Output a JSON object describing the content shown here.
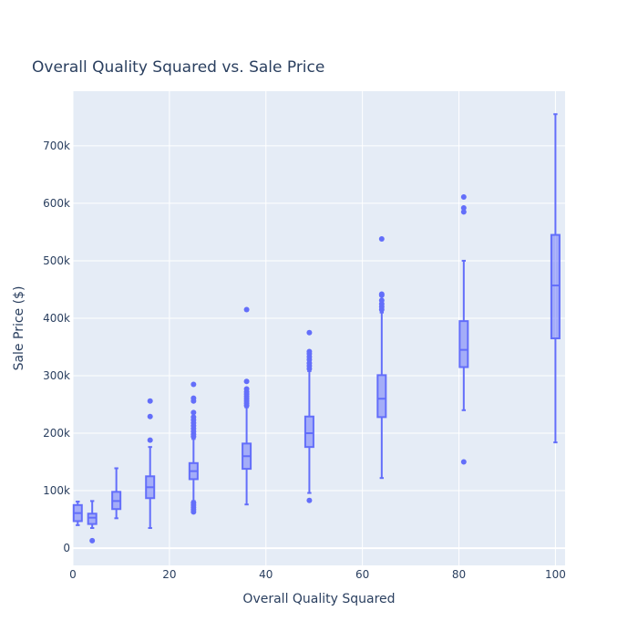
{
  "chart_data": {
    "type": "box",
    "title": "Overall Quality Squared vs. Sale Price",
    "xlabel": "Overall Quality Squared",
    "ylabel": "Sale Price ($)",
    "xlim": [
      0,
      102
    ],
    "ylim": [
      -30000,
      795000
    ],
    "x_ticks": [
      0,
      20,
      40,
      60,
      80,
      100
    ],
    "x_tick_labels": [
      "0",
      "20",
      "40",
      "60",
      "80",
      "100"
    ],
    "y_ticks": [
      0,
      100000,
      200000,
      300000,
      400000,
      500000,
      600000,
      700000
    ],
    "y_tick_labels": [
      "0",
      "100k",
      "200k",
      "300k",
      "400k",
      "500k",
      "600k",
      "700k"
    ],
    "grid": true,
    "box_color": "#636efa",
    "plot_bg": "#e5ecf6",
    "boxes": [
      {
        "x": 1,
        "lower_whisker": 40000,
        "q1": 47000,
        "median": 61000,
        "q3": 75000,
        "upper_whisker": 81000,
        "outliers": []
      },
      {
        "x": 4,
        "lower_whisker": 35000,
        "q1": 42000,
        "median": 53000,
        "q3": 60000,
        "upper_whisker": 82000,
        "outliers": [
          13000
        ]
      },
      {
        "x": 9,
        "lower_whisker": 52000,
        "q1": 68000,
        "median": 82000,
        "q3": 98000,
        "upper_whisker": 139000,
        "outliers": []
      },
      {
        "x": 16,
        "lower_whisker": 35000,
        "q1": 87000,
        "median": 106000,
        "q3": 125000,
        "upper_whisker": 176000,
        "outliers": [
          188000,
          229000,
          256000
        ]
      },
      {
        "x": 25,
        "lower_whisker": 82000,
        "q1": 120000,
        "median": 134000,
        "q3": 148000,
        "upper_whisker": 190000,
        "outliers": [
          63000,
          67000,
          71000,
          75000,
          79000,
          194000,
          198000,
          203000,
          208000,
          213000,
          218000,
          223000,
          228000,
          236000,
          256000,
          261000,
          285000
        ]
      },
      {
        "x": 36,
        "lower_whisker": 76000,
        "q1": 138000,
        "median": 160000,
        "q3": 182000,
        "upper_whisker": 245000,
        "outliers": [
          248000,
          252000,
          256000,
          260000,
          264000,
          268000,
          272000,
          277000,
          290000,
          415000
        ]
      },
      {
        "x": 49,
        "lower_whisker": 96000,
        "q1": 176000,
        "median": 200000,
        "q3": 229000,
        "upper_whisker": 308000,
        "outliers": [
          83000,
          312000,
          317000,
          322000,
          328000,
          333000,
          338000,
          342000,
          375000
        ]
      },
      {
        "x": 64,
        "lower_whisker": 122000,
        "q1": 228000,
        "median": 260000,
        "q3": 301000,
        "upper_whisker": 410000,
        "outliers": [
          415000,
          420000,
          425000,
          431000,
          440000,
          442000,
          538000
        ]
      },
      {
        "x": 81,
        "lower_whisker": 240000,
        "q1": 315000,
        "median": 345000,
        "q3": 395000,
        "upper_whisker": 500000,
        "outliers": [
          150000,
          585000,
          592000,
          611000
        ]
      },
      {
        "x": 100,
        "lower_whisker": 184000,
        "q1": 365000,
        "median": 457000,
        "q3": 545000,
        "upper_whisker": 755000,
        "outliers": []
      }
    ]
  }
}
